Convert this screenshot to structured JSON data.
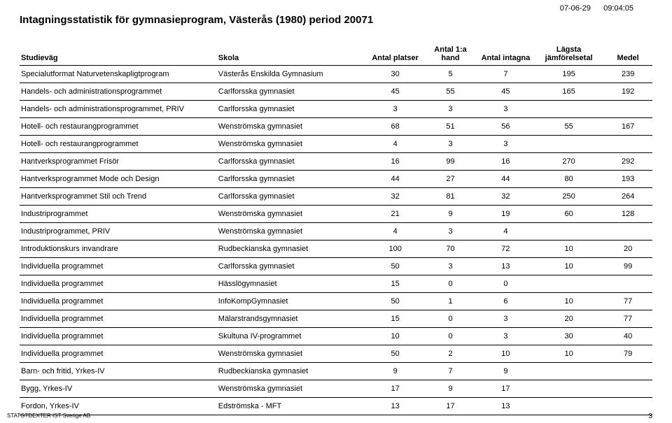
{
  "meta": {
    "date": "07-06-29",
    "time": "09:04:05",
    "title": "Intagningsstatistik för gymnasieprogram,   Västerås (1980) period 20071",
    "footer_left": "STATGTDEXTER  IST Sverige AB",
    "page_number": "3"
  },
  "table": {
    "columns": [
      "Studieväg",
      "Skola",
      "Antal\nplatser",
      "Antal\n1:a hand",
      "Antal\nintagna",
      "Lägsta\njämförelsetal",
      "Medel"
    ],
    "rows": [
      [
        "Specialutformat Naturvetenskapligtprogram",
        "Västerås Enskilda Gymnasium",
        "30",
        "5",
        "7",
        "195",
        "239"
      ],
      [
        "Handels- och administrationsprogrammet",
        "Carlforsska gymnasiet",
        "45",
        "55",
        "45",
        "165",
        "192"
      ],
      [
        "Handels- och administrationsprogrammet, PRIV",
        "Carlforsska gymnasiet",
        "3",
        "3",
        "3",
        "",
        ""
      ],
      [
        "Hotell- och restaurangprogrammet",
        "Wenströmska gymnasiet",
        "68",
        "51",
        "56",
        "55",
        "167"
      ],
      [
        "Hotell- och restaurangprogrammet",
        "Wenströmska gymnasiet",
        "4",
        "3",
        "3",
        "",
        ""
      ],
      [
        "Hantverksprogrammet  Frisör",
        "Carlforsska gymnasiet",
        "16",
        "99",
        "16",
        "270",
        "292"
      ],
      [
        "Hantverksprogrammet Mode och Design",
        "Carlforsska gymnasiet",
        "44",
        "27",
        "44",
        "80",
        "193"
      ],
      [
        "Hantverksprogrammet Stil och Trend",
        "Carlforsska gymnasiet",
        "32",
        "81",
        "32",
        "250",
        "264"
      ],
      [
        "Industriprogrammet",
        "Wenströmska gymnasiet",
        "21",
        "9",
        "19",
        "60",
        "128"
      ],
      [
        "Industriprogrammet, PRIV",
        "Wenströmska gymnasiet",
        "4",
        "3",
        "4",
        "",
        ""
      ],
      [
        "Introduktionskurs invandrare",
        "Rudbeckianska gymnasiet",
        "100",
        "70",
        "72",
        "10",
        "20"
      ],
      [
        "Individuella programmet",
        "Carlforsska gymnasiet",
        "50",
        "3",
        "13",
        "10",
        "99"
      ],
      [
        "Individuella programmet",
        "Hässlögymnasiet",
        "15",
        "0",
        "0",
        "",
        ""
      ],
      [
        "Individuella programmet",
        "InfoKompGymnasiet",
        "50",
        "1",
        "6",
        "10",
        "77"
      ],
      [
        "Individuella programmet",
        "Mälarstrandsgymnasiet",
        "15",
        "0",
        "3",
        "20",
        "77"
      ],
      [
        "Individuella programmet",
        "Skultuna IV-programmet",
        "10",
        "0",
        "3",
        "30",
        "40"
      ],
      [
        "Individuella programmet",
        "Wenströmska gymnasiet",
        "50",
        "2",
        "10",
        "10",
        "79"
      ],
      [
        "Barn- och fritid, Yrkes-IV",
        "Rudbeckianska gymnasiet",
        "9",
        "7",
        "9",
        "",
        ""
      ],
      [
        "Bygg, Yrkes-IV",
        "Wenströmska gymnasiet",
        "17",
        "9",
        "17",
        "",
        ""
      ],
      [
        "Fordon, Yrkes-IV",
        "Edströmska - MFT",
        "13",
        "17",
        "13",
        "",
        ""
      ]
    ]
  }
}
